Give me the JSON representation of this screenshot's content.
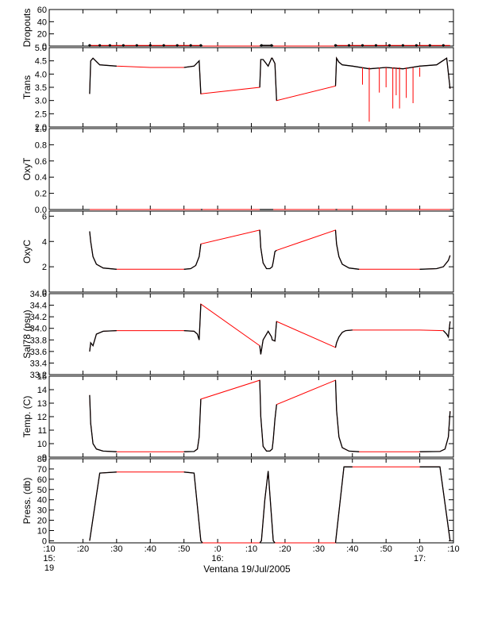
{
  "chart_data": {
    "type": "line",
    "xlabel": "Ventana 19/Jul/2005",
    "xlim": [
      "15:10",
      "17:10"
    ],
    "x_ticks": [
      {
        "t": 10,
        "line1": ":10",
        "line2": "15:",
        "line3": "19"
      },
      {
        "t": 20,
        "line1": ":20",
        "line2": "",
        "line3": ""
      },
      {
        "t": 30,
        "line1": ":30",
        "line2": "",
        "line3": ""
      },
      {
        "t": 40,
        "line1": ":40",
        "line2": "",
        "line3": ""
      },
      {
        "t": 50,
        "line1": ":50",
        "line2": "",
        "line3": ""
      },
      {
        "t": 60,
        "line1": ":0",
        "line2": "16:",
        "line3": ""
      },
      {
        "t": 70,
        "line1": ":10",
        "line2": "",
        "line3": ""
      },
      {
        "t": 80,
        "line1": ":20",
        "line2": "",
        "line3": ""
      },
      {
        "t": 90,
        "line1": ":30",
        "line2": "",
        "line3": ""
      },
      {
        "t": 100,
        "line1": ":40",
        "line2": "",
        "line3": ""
      },
      {
        "t": 110,
        "line1": ":50",
        "line2": "",
        "line3": ""
      },
      {
        "t": 120,
        "line1": ":0",
        "line2": "17:",
        "line3": ""
      },
      {
        "t": 130,
        "line1": ":10",
        "line2": "",
        "line3": ""
      }
    ],
    "colors": {
      "raw": "#ff0000",
      "smoothed": "#000000"
    },
    "panels": [
      {
        "ylabel": "Dropouts",
        "ylim": [
          0,
          60
        ],
        "ticks": [
          0,
          20,
          40,
          60
        ],
        "tick_labels": [
          "0",
          "20",
          "40",
          "60"
        ],
        "series": [
          {
            "x": [
              22,
              55,
              55.5,
              72.5,
              73,
              76,
              76.5,
              95,
              95.5,
              129
            ],
            "y": [
              1,
              1,
              0,
              0,
              1,
              1,
              0,
              0,
              1,
              1
            ]
          }
        ],
        "dot_markers": [
          22,
          25,
          28,
          32,
          36,
          40,
          44,
          48,
          52,
          55,
          73,
          76,
          95,
          99,
          103,
          107,
          111,
          115,
          119,
          123,
          127
        ]
      },
      {
        "ylabel": "Trans",
        "ylim": [
          2.0,
          5.0
        ],
        "ticks": [
          2.0,
          2.5,
          3.0,
          3.5,
          4.0,
          4.5,
          5.0
        ],
        "tick_labels": [
          "2.0",
          "2.5",
          "3.0",
          "3.5",
          "4.0",
          "4.5",
          "5.0"
        ],
        "series": [
          {
            "x": [
              22,
              22.3,
              23,
              25,
              30,
              40,
              50,
              53,
              54.5,
              55,
              72.5,
              72.8,
              73.5,
              75,
              76,
              76.2,
              77,
              77.5,
              95,
              95.3,
              96,
              97,
              100,
              105,
              110,
              115,
              120,
              125,
              128,
              129
            ],
            "y": [
              3.25,
              4.5,
              4.6,
              4.35,
              4.3,
              4.25,
              4.25,
              4.3,
              4.5,
              3.25,
              3.5,
              4.55,
              4.55,
              4.3,
              4.6,
              4.6,
              4.4,
              3.0,
              3.55,
              4.6,
              4.45,
              4.35,
              4.3,
              4.2,
              4.25,
              4.2,
              4.3,
              4.35,
              4.6,
              3.45
            ]
          }
        ],
        "spikes": [
          [
            103,
            3.6
          ],
          [
            105,
            2.2
          ],
          [
            108,
            3.3
          ],
          [
            110,
            3.5
          ],
          [
            112,
            2.7
          ],
          [
            113,
            3.2
          ],
          [
            114,
            2.7
          ],
          [
            116,
            3.1
          ],
          [
            118,
            2.9
          ],
          [
            120,
            3.9
          ]
        ]
      },
      {
        "ylabel": "OxyT",
        "ylim": [
          0,
          1.0
        ],
        "ticks": [
          0,
          0.2,
          0.4,
          0.6,
          0.8,
          1.0
        ],
        "tick_labels": [
          "0.0",
          "0.2",
          "0.4",
          "0.6",
          "0.8",
          "1.0"
        ],
        "series": [
          {
            "x": [
              22,
              55,
              55.5,
              72.5,
              73,
              76,
              76.5,
              95,
              95.5,
              129
            ],
            "y": [
              0,
              0,
              0,
              0,
              0,
              0,
              0,
              0,
              0,
              0
            ]
          }
        ]
      },
      {
        "ylabel": "OxyC",
        "ylim": [
          0,
          6.4
        ],
        "ticks": [
          0,
          2,
          4,
          6
        ],
        "tick_labels": [
          "0",
          "2",
          "4",
          "6"
        ],
        "series": [
          {
            "x": [
              22,
              22.3,
              23,
              24,
              26,
              30,
              40,
              50,
              52,
              53.5,
              54.5,
              55,
              72.5,
              72.8,
              73.5,
              74.5,
              75.5,
              76.2,
              76.5,
              77,
              77.5,
              95,
              95.3,
              96,
              97,
              99,
              102,
              110,
              120,
              125,
              127,
              128.5,
              129
            ],
            "y": [
              4.8,
              4.0,
              2.8,
              2.2,
              1.9,
              1.8,
              1.8,
              1.8,
              1.85,
              2.1,
              2.8,
              3.8,
              4.9,
              3.5,
              2.3,
              1.85,
              1.85,
              2.0,
              2.4,
              3.2,
              3.3,
              4.9,
              3.8,
              2.8,
              2.2,
              1.9,
              1.8,
              1.8,
              1.8,
              1.85,
              2.0,
              2.5,
              2.9
            ]
          }
        ]
      },
      {
        "ylabel": "Sal78 (psu)",
        "ylim": [
          33.2,
          34.6
        ],
        "ticks": [
          33.2,
          33.4,
          33.6,
          33.8,
          34.0,
          34.2,
          34.4,
          34.6
        ],
        "tick_labels": [
          "33.2",
          "33.4",
          "33.6",
          "33.8",
          "34.0",
          "34.2",
          "34.4",
          "34.6"
        ],
        "series": [
          {
            "x": [
              22,
              22.3,
              23,
              24,
              26,
              30,
              40,
              50,
              53,
              54,
              54.5,
              55,
              72.5,
              72.8,
              73.5,
              74,
              75,
              76,
              76.2,
              77,
              77.5,
              95,
              95.3,
              96,
              97,
              98,
              100,
              110,
              120,
              127,
              128,
              128.5,
              129
            ],
            "y": [
              33.6,
              33.75,
              33.7,
              33.9,
              33.95,
              33.96,
              33.96,
              33.96,
              33.95,
              33.9,
              33.8,
              34.42,
              33.7,
              33.55,
              33.8,
              33.85,
              33.95,
              33.85,
              33.8,
              33.78,
              34.12,
              33.67,
              33.75,
              33.85,
              33.93,
              33.96,
              33.97,
              33.97,
              33.97,
              33.96,
              33.9,
              33.85,
              34.12
            ]
          }
        ]
      },
      {
        "ylabel": "Temp. (C)",
        "ylim": [
          9,
          15
        ],
        "ticks": [
          9,
          10,
          11,
          12,
          13,
          14,
          15
        ],
        "tick_labels": [
          "9",
          "10",
          "11",
          "12",
          "13",
          "14",
          "15"
        ],
        "series": [
          {
            "x": [
              22,
              22.3,
              23,
              24,
              26,
              30,
              40,
              50,
              53,
              54,
              54.5,
              55,
              72.5,
              72.8,
              73.5,
              74.5,
              75.5,
              76.2,
              76.5,
              77,
              77.5,
              95,
              95.3,
              96,
              97,
              99,
              102,
              110,
              120,
              126,
              127.5,
              128.5,
              129
            ],
            "y": [
              13.6,
              11.5,
              10.0,
              9.6,
              9.45,
              9.4,
              9.4,
              9.4,
              9.42,
              9.6,
              10.5,
              13.3,
              14.7,
              12.0,
              9.8,
              9.45,
              9.45,
              9.6,
              10.3,
              11.8,
              12.9,
              14.7,
              12.5,
              10.5,
              9.7,
              9.45,
              9.4,
              9.4,
              9.4,
              9.42,
              9.6,
              10.5,
              12.4
            ]
          }
        ]
      },
      {
        "ylabel": "Press. (db)",
        "ylim": [
          -2,
          80
        ],
        "ticks": [
          0,
          10,
          20,
          30,
          40,
          50,
          60,
          70,
          80
        ],
        "tick_labels": [
          "0",
          "10",
          "20",
          "30",
          "40",
          "50",
          "60",
          "70",
          "80"
        ],
        "series": [
          {
            "x": [
              22,
              25,
              30,
              40,
              50,
              53,
              55,
              55.5,
              72.5,
              73,
              74,
              75,
              76.5,
              77,
              95,
              97.5,
              100,
              110,
              120,
              126,
              129
            ],
            "y": [
              0,
              66,
              67,
              67,
              67,
              66,
              0,
              -2,
              -2,
              0,
              40,
              68,
              0,
              -2,
              -2,
              72,
              72,
              72,
              72,
              72,
              0
            ]
          }
        ]
      }
    ]
  }
}
